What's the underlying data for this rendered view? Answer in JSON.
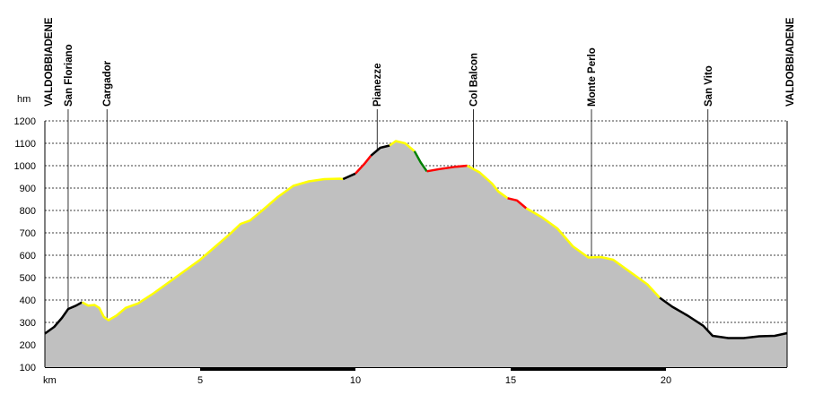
{
  "chart_data": {
    "type": "area",
    "ylabel": "hm",
    "xlabel": "km",
    "xlim": [
      0,
      23.9
    ],
    "ylim": [
      100,
      1200
    ],
    "y_ticks": [
      100,
      200,
      300,
      400,
      500,
      600,
      700,
      800,
      900,
      1000,
      1100,
      1200
    ],
    "x_ticks": [
      5,
      10,
      15,
      20
    ],
    "grid": "horizontal dashed",
    "fill_color": "#c0c0c0",
    "places": [
      {
        "name": "VALDOBBIADENE",
        "km": 0.0
      },
      {
        "name": "San Floriano",
        "km": 0.75
      },
      {
        "name": "Cargador",
        "km": 2.0
      },
      {
        "name": "Pianezze",
        "km": 10.7
      },
      {
        "name": "Col Balcon",
        "km": 13.8
      },
      {
        "name": "Monte Perlo",
        "km": 17.6
      },
      {
        "name": "San Vito",
        "km": 21.35
      },
      {
        "name": "VALDOBBIADENE",
        "km": 23.9
      }
    ],
    "segments": [
      {
        "color": "#000000",
        "points": [
          [
            0,
            250
          ],
          [
            0.3,
            280
          ],
          [
            0.55,
            320
          ],
          [
            0.75,
            360
          ],
          [
            1.0,
            375
          ],
          [
            1.2,
            390
          ]
        ]
      },
      {
        "color": "#ffff00",
        "points": [
          [
            1.2,
            390
          ],
          [
            1.4,
            375
          ],
          [
            1.6,
            378
          ],
          [
            1.75,
            365
          ],
          [
            1.9,
            325
          ],
          [
            2.05,
            310
          ],
          [
            2.3,
            330
          ],
          [
            2.6,
            365
          ],
          [
            3.0,
            385
          ],
          [
            3.5,
            430
          ],
          [
            4.0,
            480
          ],
          [
            4.5,
            530
          ],
          [
            5.0,
            580
          ],
          [
            5.5,
            640
          ],
          [
            6.0,
            700
          ],
          [
            6.3,
            740
          ],
          [
            6.6,
            755
          ],
          [
            7.0,
            800
          ],
          [
            7.5,
            860
          ],
          [
            8.0,
            910
          ],
          [
            8.5,
            930
          ],
          [
            9.0,
            940
          ],
          [
            9.5,
            942
          ],
          [
            9.6,
            940
          ]
        ]
      },
      {
        "color": "#000000",
        "points": [
          [
            9.6,
            940
          ],
          [
            10.0,
            965
          ]
        ]
      },
      {
        "color": "#ff0000",
        "points": [
          [
            10.0,
            965
          ],
          [
            10.3,
            1010
          ],
          [
            10.5,
            1045
          ]
        ]
      },
      {
        "color": "#000000",
        "points": [
          [
            10.5,
            1045
          ],
          [
            10.8,
            1080
          ],
          [
            11.1,
            1090
          ]
        ]
      },
      {
        "color": "#ffff00",
        "points": [
          [
            11.1,
            1090
          ],
          [
            11.3,
            1110
          ],
          [
            11.6,
            1100
          ],
          [
            11.9,
            1065
          ]
        ]
      },
      {
        "color": "#008000",
        "points": [
          [
            11.9,
            1065
          ],
          [
            12.1,
            1015
          ],
          [
            12.3,
            975
          ]
        ]
      },
      {
        "color": "#ff0000",
        "points": [
          [
            12.3,
            975
          ],
          [
            12.7,
            985
          ],
          [
            13.2,
            995
          ],
          [
            13.6,
            1000
          ]
        ]
      },
      {
        "color": "#ffff00",
        "points": [
          [
            13.6,
            1000
          ],
          [
            14.0,
            970
          ],
          [
            14.4,
            920
          ],
          [
            14.6,
            885
          ],
          [
            14.9,
            855
          ]
        ]
      },
      {
        "color": "#ff0000",
        "points": [
          [
            14.9,
            855
          ],
          [
            15.2,
            845
          ],
          [
            15.5,
            810
          ]
        ]
      },
      {
        "color": "#ffff00",
        "points": [
          [
            15.5,
            810
          ],
          [
            16.0,
            770
          ],
          [
            16.5,
            720
          ],
          [
            17.0,
            640
          ],
          [
            17.5,
            590
          ],
          [
            17.9,
            592
          ],
          [
            18.3,
            580
          ],
          [
            18.8,
            530
          ],
          [
            19.4,
            470
          ],
          [
            19.8,
            410
          ]
        ]
      },
      {
        "color": "#000000",
        "points": [
          [
            19.8,
            410
          ],
          [
            20.2,
            370
          ],
          [
            20.7,
            330
          ],
          [
            21.2,
            285
          ],
          [
            21.5,
            240
          ],
          [
            22.0,
            230
          ],
          [
            22.5,
            230
          ],
          [
            23.0,
            238
          ],
          [
            23.5,
            240
          ],
          [
            23.9,
            252
          ]
        ]
      }
    ]
  }
}
